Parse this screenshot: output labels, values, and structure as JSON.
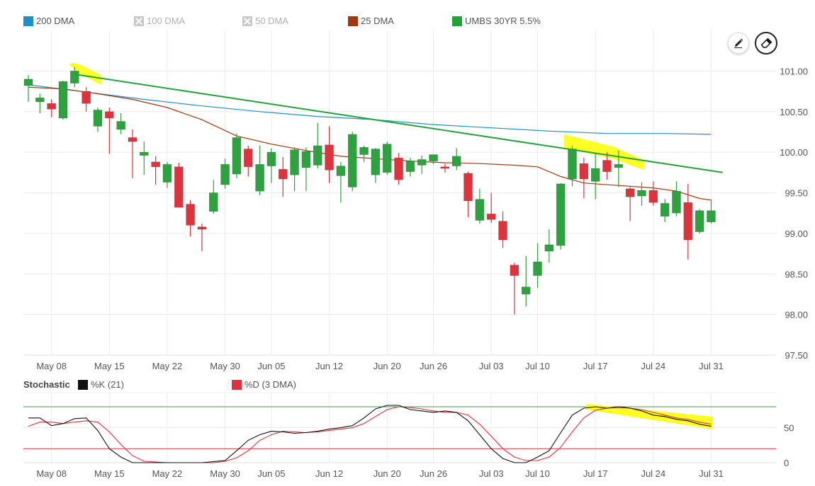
{
  "legend": {
    "items": [
      {
        "label": "200 DMA",
        "color": "#1f8fc7",
        "enabled": true
      },
      {
        "label": "100 DMA",
        "color": "#c8c8c8",
        "enabled": false
      },
      {
        "label": "50 DMA",
        "color": "#c8c8c8",
        "enabled": false
      },
      {
        "label": "25 DMA",
        "color": "#a0380f",
        "enabled": true
      },
      {
        "label": "UMBS 30YR 5.5%",
        "color": "#22a33a",
        "enabled": true
      }
    ]
  },
  "toolbar": {
    "pencil_icon": "pencil-icon",
    "eraser_icon": "eraser-icon"
  },
  "stochastic": {
    "title": "Stochastic",
    "k_label": "%K (21)",
    "d_label": "%D (3 DMA)",
    "k_color": "#111111",
    "d_color": "#e0323c",
    "upper_line": 80,
    "lower_line": 20,
    "y_ticks": [
      "50",
      "0"
    ]
  },
  "chart_data": {
    "type": "candlestick",
    "x_labels": [
      "May 08",
      "May 15",
      "May 22",
      "May 30",
      "Jun 05",
      "Jun 12",
      "Jun 20",
      "Jun 26",
      "Jul 03",
      "Jul 10",
      "Jul 17",
      "Jul 24",
      "Jul 31"
    ],
    "x_label_positions": [
      2,
      7,
      12,
      17,
      21,
      26,
      31,
      35,
      40,
      44,
      49,
      54,
      59
    ],
    "y_ticks": [
      "101.00",
      "100.50",
      "100.00",
      "99.50",
      "99.00",
      "98.50",
      "98.00",
      "97.50"
    ],
    "ylim": [
      97.5,
      101.5
    ],
    "up_color": "#2ca33f",
    "down_color": "#e0323c",
    "candles": [
      {
        "o": 100.82,
        "h": 100.95,
        "l": 100.62,
        "c": 100.9
      },
      {
        "o": 100.62,
        "h": 100.72,
        "l": 100.48,
        "c": 100.67
      },
      {
        "o": 100.6,
        "h": 100.65,
        "l": 100.43,
        "c": 100.53
      },
      {
        "o": 100.42,
        "h": 100.88,
        "l": 100.4,
        "c": 100.87
      },
      {
        "o": 100.85,
        "h": 101.05,
        "l": 100.8,
        "c": 101.0
      },
      {
        "o": 100.75,
        "h": 100.8,
        "l": 100.5,
        "c": 100.6
      },
      {
        "o": 100.32,
        "h": 100.55,
        "l": 100.25,
        "c": 100.52
      },
      {
        "o": 100.5,
        "h": 100.55,
        "l": 99.98,
        "c": 100.42
      },
      {
        "o": 100.28,
        "h": 100.48,
        "l": 100.22,
        "c": 100.38
      },
      {
        "o": 100.18,
        "h": 100.28,
        "l": 99.68,
        "c": 100.13
      },
      {
        "o": 99.96,
        "h": 100.13,
        "l": 99.72,
        "c": 100.0
      },
      {
        "o": 99.88,
        "h": 99.95,
        "l": 99.6,
        "c": 99.82
      },
      {
        "o": 99.63,
        "h": 99.88,
        "l": 99.56,
        "c": 99.85
      },
      {
        "o": 99.82,
        "h": 99.87,
        "l": 99.32,
        "c": 99.32
      },
      {
        "o": 99.36,
        "h": 99.41,
        "l": 98.96,
        "c": 99.1
      },
      {
        "o": 99.08,
        "h": 99.12,
        "l": 98.78,
        "c": 99.05
      },
      {
        "o": 99.27,
        "h": 99.66,
        "l": 99.24,
        "c": 99.5
      },
      {
        "o": 99.6,
        "h": 99.92,
        "l": 99.55,
        "c": 99.85
      },
      {
        "o": 99.73,
        "h": 100.23,
        "l": 99.68,
        "c": 100.18
      },
      {
        "o": 100.04,
        "h": 100.08,
        "l": 99.7,
        "c": 99.82
      },
      {
        "o": 99.52,
        "h": 100.08,
        "l": 99.47,
        "c": 99.85
      },
      {
        "o": 99.83,
        "h": 100.05,
        "l": 99.62,
        "c": 100.0
      },
      {
        "o": 99.79,
        "h": 99.94,
        "l": 99.45,
        "c": 99.67
      },
      {
        "o": 99.72,
        "h": 100.06,
        "l": 99.52,
        "c": 100.03
      },
      {
        "o": 99.81,
        "h": 100.06,
        "l": 99.52,
        "c": 100.01
      },
      {
        "o": 99.84,
        "h": 100.36,
        "l": 99.8,
        "c": 100.08
      },
      {
        "o": 100.09,
        "h": 100.32,
        "l": 99.62,
        "c": 99.78
      },
      {
        "o": 99.71,
        "h": 99.88,
        "l": 99.38,
        "c": 99.83
      },
      {
        "o": 99.57,
        "h": 100.25,
        "l": 99.52,
        "c": 100.22
      },
      {
        "o": 99.97,
        "h": 100.08,
        "l": 99.88,
        "c": 100.06
      },
      {
        "o": 99.72,
        "h": 100.05,
        "l": 99.62,
        "c": 100.04
      },
      {
        "o": 99.75,
        "h": 100.13,
        "l": 99.72,
        "c": 100.1
      },
      {
        "o": 99.93,
        "h": 99.99,
        "l": 99.6,
        "c": 99.66
      },
      {
        "o": 99.76,
        "h": 99.93,
        "l": 99.7,
        "c": 99.89
      },
      {
        "o": 99.84,
        "h": 99.96,
        "l": 99.73,
        "c": 99.91
      },
      {
        "o": 99.89,
        "h": 99.97,
        "l": 99.85,
        "c": 99.97
      },
      {
        "o": 99.82,
        "h": 99.86,
        "l": 99.75,
        "c": 99.8
      },
      {
        "o": 99.83,
        "h": 100.05,
        "l": 99.78,
        "c": 99.95
      },
      {
        "o": 99.74,
        "h": 99.76,
        "l": 99.2,
        "c": 99.4
      },
      {
        "o": 99.16,
        "h": 99.55,
        "l": 99.12,
        "c": 99.42
      },
      {
        "o": 99.24,
        "h": 99.5,
        "l": 99.13,
        "c": 99.17
      },
      {
        "o": 99.15,
        "h": 99.27,
        "l": 98.82,
        "c": 98.92
      },
      {
        "o": 98.61,
        "h": 98.64,
        "l": 98.0,
        "c": 98.48
      },
      {
        "o": 98.25,
        "h": 98.72,
        "l": 98.1,
        "c": 98.34
      },
      {
        "o": 98.48,
        "h": 98.88,
        "l": 98.33,
        "c": 98.65
      },
      {
        "o": 98.78,
        "h": 99.05,
        "l": 98.64,
        "c": 98.86
      },
      {
        "o": 98.85,
        "h": 99.62,
        "l": 98.8,
        "c": 99.61
      },
      {
        "o": 99.67,
        "h": 100.08,
        "l": 99.58,
        "c": 100.04
      },
      {
        "o": 99.86,
        "h": 99.93,
        "l": 99.43,
        "c": 99.67
      },
      {
        "o": 99.64,
        "h": 99.99,
        "l": 99.42,
        "c": 99.8
      },
      {
        "o": 99.9,
        "h": 100.0,
        "l": 99.66,
        "c": 99.76
      },
      {
        "o": 99.81,
        "h": 100.02,
        "l": 99.57,
        "c": 99.85
      },
      {
        "o": 99.55,
        "h": 99.57,
        "l": 99.15,
        "c": 99.45
      },
      {
        "o": 99.46,
        "h": 99.63,
        "l": 99.34,
        "c": 99.53
      },
      {
        "o": 99.53,
        "h": 99.64,
        "l": 99.34,
        "c": 99.38
      },
      {
        "o": 99.21,
        "h": 99.42,
        "l": 99.14,
        "c": 99.37
      },
      {
        "o": 99.25,
        "h": 99.64,
        "l": 99.21,
        "c": 99.52
      },
      {
        "o": 99.38,
        "h": 99.61,
        "l": 98.68,
        "c": 98.92
      },
      {
        "o": 99.02,
        "h": 99.3,
        "l": 99.0,
        "c": 99.28
      },
      {
        "o": 99.14,
        "h": 99.42,
        "l": 99.12,
        "c": 99.28
      }
    ],
    "dma200": [
      [
        0,
        100.83
      ],
      [
        5,
        100.74
      ],
      [
        10,
        100.65
      ],
      [
        15,
        100.57
      ],
      [
        20,
        100.5
      ],
      [
        25,
        100.44
      ],
      [
        30,
        100.4
      ],
      [
        35,
        100.34
      ],
      [
        40,
        100.3
      ],
      [
        45,
        100.26
      ],
      [
        50,
        100.23
      ],
      [
        55,
        100.23
      ],
      [
        59,
        100.22
      ]
    ],
    "dma25": [
      [
        0,
        100.8
      ],
      [
        3,
        100.78
      ],
      [
        6,
        100.72
      ],
      [
        9,
        100.65
      ],
      [
        12,
        100.55
      ],
      [
        15,
        100.4
      ],
      [
        18,
        100.2
      ],
      [
        21,
        100.1
      ],
      [
        24,
        100.02
      ],
      [
        27,
        99.95
      ],
      [
        30,
        99.92
      ],
      [
        33,
        99.89
      ],
      [
        36,
        99.87
      ],
      [
        39,
        99.86
      ],
      [
        42,
        99.84
      ],
      [
        44,
        99.82
      ],
      [
        46,
        99.7
      ],
      [
        48,
        99.62
      ],
      [
        51,
        99.59
      ],
      [
        54,
        99.56
      ],
      [
        56,
        99.52
      ],
      [
        58,
        99.43
      ],
      [
        59,
        99.41
      ]
    ],
    "trendline": [
      [
        4,
        100.96
      ],
      [
        60,
        99.75
      ]
    ],
    "highlights": [
      {
        "points": [
          [
            3.5,
            101.08
          ],
          [
            4.5,
            100.96
          ],
          [
            6.3,
            100.83
          ],
          [
            6.3,
            100.95
          ],
          [
            4.5,
            101.08
          ],
          [
            3.8,
            101.1
          ]
        ]
      },
      {
        "points": [
          [
            46.3,
            100.22
          ],
          [
            50.5,
            100.07
          ],
          [
            53.2,
            99.9
          ],
          [
            53.2,
            99.78
          ],
          [
            50.5,
            99.92
          ],
          [
            46.3,
            100.05
          ]
        ]
      }
    ],
    "stoch_k": [
      [
        0,
        64
      ],
      [
        1,
        64
      ],
      [
        2,
        53
      ],
      [
        3,
        56
      ],
      [
        4,
        63
      ],
      [
        5,
        64
      ],
      [
        6,
        46
      ],
      [
        7,
        20
      ],
      [
        8,
        8
      ],
      [
        9,
        0
      ],
      [
        11,
        0
      ],
      [
        13,
        0
      ],
      [
        15,
        0
      ],
      [
        17,
        3
      ],
      [
        18,
        17
      ],
      [
        19,
        32
      ],
      [
        20,
        40
      ],
      [
        21,
        45
      ],
      [
        22,
        44
      ],
      [
        23,
        42
      ],
      [
        24,
        43
      ],
      [
        25,
        45
      ],
      [
        26,
        48
      ],
      [
        27,
        50
      ],
      [
        28,
        53
      ],
      [
        29,
        64
      ],
      [
        30,
        77
      ],
      [
        31,
        82
      ],
      [
        32,
        82
      ],
      [
        33,
        76
      ],
      [
        34,
        74
      ],
      [
        35,
        72
      ],
      [
        36,
        74
      ],
      [
        37,
        72
      ],
      [
        38,
        60
      ],
      [
        39,
        40
      ],
      [
        40,
        20
      ],
      [
        41,
        6
      ],
      [
        42,
        0
      ],
      [
        43,
        0
      ],
      [
        44,
        8
      ],
      [
        45,
        17
      ],
      [
        46,
        43
      ],
      [
        47,
        68
      ],
      [
        48,
        78
      ],
      [
        49,
        80
      ],
      [
        50,
        78
      ],
      [
        51,
        80
      ],
      [
        52,
        78
      ],
      [
        53,
        74
      ],
      [
        54,
        68
      ],
      [
        55,
        66
      ],
      [
        56,
        62
      ],
      [
        57,
        60
      ],
      [
        58,
        55
      ],
      [
        59,
        52
      ]
    ],
    "stoch_d": [
      [
        0,
        52
      ],
      [
        1,
        58
      ],
      [
        2,
        58
      ],
      [
        3,
        56
      ],
      [
        4,
        58
      ],
      [
        5,
        60
      ],
      [
        6,
        58
      ],
      [
        7,
        44
      ],
      [
        8,
        26
      ],
      [
        9,
        10
      ],
      [
        10,
        2
      ],
      [
        12,
        0
      ],
      [
        14,
        0
      ],
      [
        16,
        0
      ],
      [
        17,
        2
      ],
      [
        18,
        7
      ],
      [
        19,
        17
      ],
      [
        20,
        32
      ],
      [
        21,
        40
      ],
      [
        22,
        45
      ],
      [
        23,
        44
      ],
      [
        24,
        43
      ],
      [
        25,
        44
      ],
      [
        26,
        46
      ],
      [
        27,
        48
      ],
      [
        28,
        50
      ],
      [
        29,
        56
      ],
      [
        30,
        66
      ],
      [
        31,
        76
      ],
      [
        32,
        80
      ],
      [
        33,
        79
      ],
      [
        34,
        77
      ],
      [
        35,
        74
      ],
      [
        36,
        72
      ],
      [
        37,
        72
      ],
      [
        38,
        68
      ],
      [
        39,
        55
      ],
      [
        40,
        38
      ],
      [
        41,
        20
      ],
      [
        42,
        8
      ],
      [
        43,
        3
      ],
      [
        44,
        3
      ],
      [
        45,
        8
      ],
      [
        46,
        22
      ],
      [
        47,
        44
      ],
      [
        48,
        64
      ],
      [
        49,
        75
      ],
      [
        50,
        78
      ],
      [
        51,
        79
      ],
      [
        52,
        78
      ],
      [
        53,
        76
      ],
      [
        54,
        72
      ],
      [
        55,
        68
      ],
      [
        56,
        64
      ],
      [
        57,
        62
      ],
      [
        58,
        58
      ],
      [
        59,
        55
      ]
    ],
    "stoch_highlight": [
      [
        48.2,
        84
      ],
      [
        59.1,
        66
      ],
      [
        59.1,
        48
      ],
      [
        48.2,
        76
      ]
    ]
  }
}
